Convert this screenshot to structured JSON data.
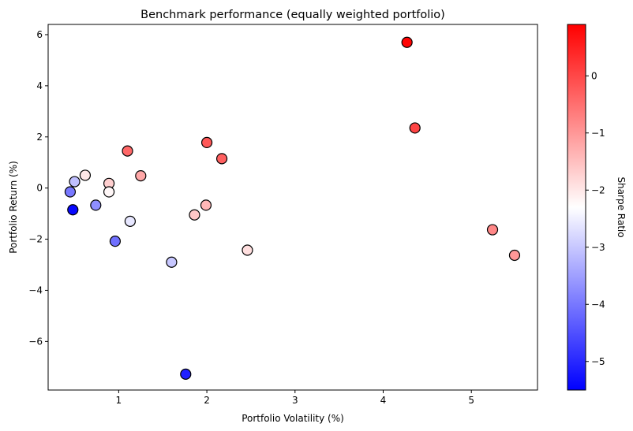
{
  "chart_data": {
    "type": "scatter",
    "title": "Benchmark performance (equally weighted portfolio)",
    "xlabel": "Portfolio Volatility (%)",
    "ylabel": "Portfolio Return (%)",
    "colorbar_label": "Sharpe Ratio",
    "xlim": [
      0.2,
      5.75
    ],
    "ylim": [
      -7.9,
      6.4
    ],
    "xticks": [
      1,
      2,
      3,
      4,
      5
    ],
    "yticks": [
      -6,
      -4,
      -2,
      0,
      2,
      4,
      6
    ],
    "colorbar_range": [
      -5.5,
      0.9
    ],
    "colorbar_ticks": [
      -5,
      -4,
      -3,
      -2,
      -1,
      0
    ],
    "colormap": "bwr",
    "grid": false,
    "legend": "none",
    "points": [
      {
        "x": 4.27,
        "y": 5.7,
        "sharpe": 0.85
      },
      {
        "x": 4.36,
        "y": 2.35,
        "sharpe": 0.05
      },
      {
        "x": 1.1,
        "y": 1.45,
        "sharpe": -0.4
      },
      {
        "x": 2.0,
        "y": 1.78,
        "sharpe": -0.2
      },
      {
        "x": 2.17,
        "y": 1.15,
        "sharpe": -0.3
      },
      {
        "x": 1.25,
        "y": 0.48,
        "sharpe": -1.2
      },
      {
        "x": 0.62,
        "y": 0.5,
        "sharpe": -2.0
      },
      {
        "x": 0.5,
        "y": 0.25,
        "sharpe": -3.1
      },
      {
        "x": 0.89,
        "y": 0.18,
        "sharpe": -1.7
      },
      {
        "x": 0.89,
        "y": -0.15,
        "sharpe": -2.2
      },
      {
        "x": 0.45,
        "y": -0.15,
        "sharpe": -4.0
      },
      {
        "x": 0.48,
        "y": -0.85,
        "sharpe": -5.4
      },
      {
        "x": 0.74,
        "y": -0.67,
        "sharpe": -3.7
      },
      {
        "x": 1.13,
        "y": -1.3,
        "sharpe": -2.6
      },
      {
        "x": 1.86,
        "y": -1.05,
        "sharpe": -1.6
      },
      {
        "x": 1.99,
        "y": -0.67,
        "sharpe": -1.4
      },
      {
        "x": 0.96,
        "y": -2.08,
        "sharpe": -4.1
      },
      {
        "x": 1.6,
        "y": -2.9,
        "sharpe": -3.0
      },
      {
        "x": 2.46,
        "y": -2.43,
        "sharpe": -1.9
      },
      {
        "x": 5.24,
        "y": -1.63,
        "sharpe": -0.8
      },
      {
        "x": 5.49,
        "y": -2.63,
        "sharpe": -1.0
      },
      {
        "x": 1.76,
        "y": -7.28,
        "sharpe": -5.1
      }
    ]
  }
}
